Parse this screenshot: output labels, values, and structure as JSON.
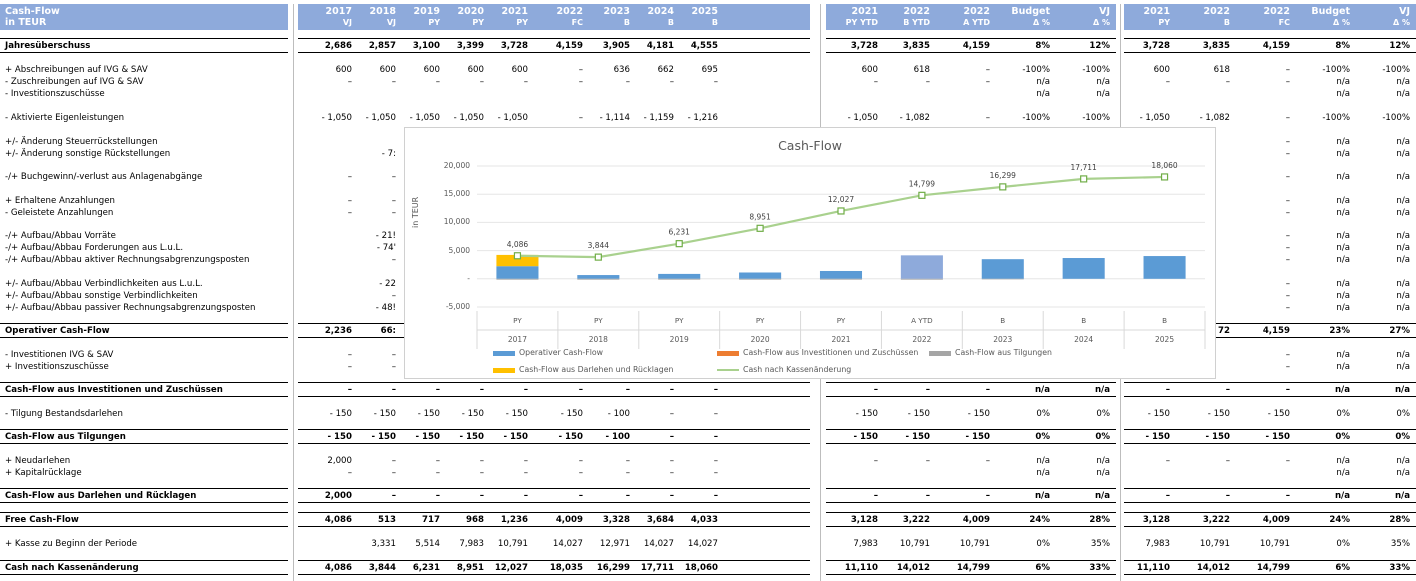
{
  "header": {
    "title": "Cash-Flow",
    "unit": "in TEUR",
    "columns": [
      {
        "year": "2017",
        "sub": "VJ"
      },
      {
        "year": "2018",
        "sub": "VJ"
      },
      {
        "year": "2019",
        "sub": "PY"
      },
      {
        "year": "2020",
        "sub": "PY"
      },
      {
        "year": "2021",
        "sub": "PY"
      },
      {
        "year": "2022",
        "sub": "FC"
      },
      {
        "year": "2023",
        "sub": "B"
      },
      {
        "year": "2024",
        "sub": "B"
      },
      {
        "year": "2025",
        "sub": "B"
      },
      {
        "year": "2021",
        "sub": "PY YTD"
      },
      {
        "year": "2022",
        "sub": "B YTD"
      },
      {
        "year": "2022",
        "sub": "A YTD"
      },
      {
        "year": "Budget",
        "sub": "Δ %"
      },
      {
        "year": "VJ",
        "sub": "Δ %"
      },
      {
        "year": "2021",
        "sub": "PY"
      },
      {
        "year": "2022",
        "sub": "B"
      },
      {
        "year": "2022",
        "sub": "FC"
      },
      {
        "year": "Budget",
        "sub": "Δ %"
      },
      {
        "year": "VJ",
        "sub": "Δ %"
      }
    ]
  },
  "rows": [
    {
      "label": "Jahresüberschuss",
      "bold": true,
      "v": [
        "2,686",
        "2,857",
        "3,100",
        "3,399",
        "3,728",
        "4,159",
        "3,905",
        "4,181",
        "4,555",
        "3,728",
        "3,835",
        "4,159",
        "8%",
        "12%",
        "3,728",
        "3,835",
        "4,159",
        "8%",
        "12%"
      ]
    },
    {
      "label": "+ Abschreibungen auf IVG & SAV",
      "v": [
        "600",
        "600",
        "600",
        "600",
        "600",
        "–",
        "636",
        "662",
        "695",
        "600",
        "618",
        "–",
        "-100%",
        "-100%",
        "600",
        "618",
        "–",
        "-100%",
        "-100%"
      ]
    },
    {
      "label": "- Zuschreibungen auf IVG & SAV",
      "v": [
        "–",
        "–",
        "–",
        "–",
        "–",
        "–",
        "–",
        "–",
        "–",
        "–",
        "–",
        "–",
        "n/a",
        "n/a",
        "–",
        "–",
        "–",
        "n/a",
        "n/a"
      ]
    },
    {
      "label": "- Investitionszuschüsse",
      "v": [
        "",
        "",
        "",
        "",
        "",
        "",
        "",
        "",
        "",
        "",
        "",
        "",
        "n/a",
        "n/a",
        "",
        "",
        "",
        "n/a",
        "n/a"
      ]
    },
    {
      "label": "- Aktivierte Eigenleistungen",
      "v": [
        "- 1,050",
        "- 1,050",
        "- 1,050",
        "- 1,050",
        "- 1,050",
        "–",
        "- 1,114",
        "- 1,159",
        "- 1,216",
        "- 1,050",
        "- 1,082",
        "–",
        "-100%",
        "-100%",
        "- 1,050",
        "- 1,082",
        "–",
        "-100%",
        "-100%"
      ]
    },
    {
      "label": "+/- Änderung Steuerrückstellungen",
      "v": [
        "",
        "",
        "",
        "",
        "",
        "",
        "",
        "",
        "",
        "",
        "",
        "",
        "",
        "",
        "",
        "",
        "–",
        "n/a",
        "n/a"
      ]
    },
    {
      "label": "+/- Änderung sonstige Rückstellungen",
      "v": [
        "",
        "- 7:",
        "",
        "",
        "",
        "",
        "",
        "",
        "",
        "",
        "",
        "",
        "",
        "",
        "",
        "",
        "–",
        "n/a",
        "n/a"
      ]
    },
    {
      "label": "-/+ Buchgewinn/-verlust aus Anlagenabgänge",
      "v": [
        "–",
        "–",
        "",
        "",
        "",
        "",
        "",
        "",
        "",
        "",
        "",
        "",
        "",
        "",
        "",
        "",
        "–",
        "n/a",
        "n/a"
      ]
    },
    {
      "label": "+ Erhaltene Anzahlungen",
      "v": [
        "–",
        "–",
        "",
        "",
        "",
        "",
        "",
        "",
        "",
        "",
        "",
        "",
        "",
        "",
        "",
        "",
        "–",
        "n/a",
        "n/a"
      ]
    },
    {
      "label": "- Geleistete Anzahlungen",
      "v": [
        "–",
        "–",
        "",
        "",
        "",
        "",
        "",
        "",
        "",
        "",
        "",
        "",
        "",
        "",
        "",
        "",
        "–",
        "n/a",
        "n/a"
      ]
    },
    {
      "label": "-/+ Aufbau/Abbau Vorräte",
      "v": [
        "",
        "- 21!",
        "",
        "",
        "",
        "",
        "",
        "",
        "",
        "",
        "",
        "",
        "",
        "",
        "",
        "",
        "–",
        "n/a",
        "n/a"
      ]
    },
    {
      "label": "-/+ Aufbau/Abbau Forderungen aus L.u.L.",
      "v": [
        "",
        "- 74'",
        "",
        "",
        "",
        "",
        "",
        "",
        "",
        "",
        "",
        "",
        "",
        "",
        "",
        "",
        "–",
        "n/a",
        "n/a"
      ]
    },
    {
      "label": "-/+ Aufbau/Abbau aktiver Rechnungsabgrenzungsposten",
      "v": [
        "",
        "–",
        "",
        "",
        "",
        "",
        "",
        "",
        "",
        "",
        "",
        "",
        "",
        "",
        "",
        "",
        "–",
        "n/a",
        "n/a"
      ]
    },
    {
      "label": "+/- Aufbau/Abbau Verbindlichkeiten aus L.u.L.",
      "v": [
        "",
        "- 22",
        "",
        "",
        "",
        "",
        "",
        "",
        "",
        "",
        "",
        "",
        "",
        "",
        "",
        "",
        "–",
        "n/a",
        "n/a"
      ]
    },
    {
      "label": "+/- Aufbau/Abbau sonstige Verbindlichkeiten",
      "v": [
        "",
        "–",
        "",
        "",
        "",
        "",
        "",
        "",
        "",
        "",
        "",
        "",
        "",
        "",
        "",
        "",
        "–",
        "n/a",
        "n/a"
      ]
    },
    {
      "label": "+/- Aufbau/Abbau passiver Rechnungsabgrenzungsposten",
      "v": [
        "",
        "- 48!",
        "",
        "",
        "",
        "",
        "",
        "",
        "",
        "",
        "",
        "",
        "",
        "",
        "",
        "",
        "–",
        "n/a",
        "n/a"
      ]
    },
    {
      "label": "Operativer Cash-Flow",
      "bold": true,
      "v": [
        "2,236",
        "66:",
        "",
        "",
        "",
        "",
        "",
        "",
        "",
        "",
        "",
        "",
        "",
        "",
        "",
        "72",
        "4,159",
        "23%",
        "27%"
      ]
    },
    {
      "label": "- Investitionen IVG & SAV",
      "v": [
        "–",
        "–",
        "",
        "",
        "",
        "",
        "",
        "",
        "",
        "",
        "",
        "",
        "",
        "",
        "",
        "",
        "–",
        "n/a",
        "n/a"
      ]
    },
    {
      "label": "+ Investitionszuschüsse",
      "v": [
        "–",
        "–",
        "",
        "",
        "",
        "",
        "",
        "",
        "",
        "",
        "",
        "",
        "",
        "",
        "",
        "",
        "–",
        "n/a",
        "n/a"
      ]
    },
    {
      "label": "Cash-Flow aus Investitionen und Zuschüssen",
      "bold": true,
      "v": [
        "–",
        "–",
        "–",
        "–",
        "–",
        "–",
        "–",
        "–",
        "–",
        "–",
        "–",
        "–",
        "n/a",
        "n/a",
        "–",
        "–",
        "–",
        "n/a",
        "n/a"
      ]
    },
    {
      "label": "- Tilgung Bestandsdarlehen",
      "v": [
        "- 150",
        "- 150",
        "- 150",
        "- 150",
        "- 150",
        "- 150",
        "- 100",
        "–",
        "–",
        "- 150",
        "- 150",
        "- 150",
        "0%",
        "0%",
        "- 150",
        "- 150",
        "- 150",
        "0%",
        "0%"
      ]
    },
    {
      "label": "Cash-Flow aus Tilgungen",
      "bold": true,
      "v": [
        "- 150",
        "- 150",
        "- 150",
        "- 150",
        "- 150",
        "- 150",
        "- 100",
        "–",
        "–",
        "- 150",
        "- 150",
        "- 150",
        "0%",
        "0%",
        "- 150",
        "- 150",
        "- 150",
        "0%",
        "0%"
      ]
    },
    {
      "label": "+ Neudarlehen",
      "v": [
        "2,000",
        "–",
        "–",
        "–",
        "–",
        "–",
        "–",
        "–",
        "–",
        "–",
        "–",
        "–",
        "n/a",
        "n/a",
        "–",
        "–",
        "–",
        "n/a",
        "n/a"
      ]
    },
    {
      "label": "+ Kapitalrücklage",
      "v": [
        "–",
        "–",
        "–",
        "–",
        "–",
        "–",
        "–",
        "–",
        "–",
        "",
        "",
        "",
        "n/a",
        "n/a",
        "",
        "",
        "",
        "n/a",
        "n/a"
      ]
    },
    {
      "label": "Cash-Flow aus Darlehen und Rücklagen",
      "bold": true,
      "v": [
        "2,000",
        "–",
        "–",
        "–",
        "–",
        "–",
        "–",
        "–",
        "–",
        "–",
        "–",
        "–",
        "n/a",
        "n/a",
        "–",
        "–",
        "–",
        "n/a",
        "n/a"
      ]
    },
    {
      "label": "Free Cash-Flow",
      "bold": true,
      "v": [
        "4,086",
        "513",
        "717",
        "968",
        "1,236",
        "4,009",
        "3,328",
        "3,684",
        "4,033",
        "3,128",
        "3,222",
        "4,009",
        "24%",
        "28%",
        "3,128",
        "3,222",
        "4,009",
        "24%",
        "28%"
      ]
    },
    {
      "label": "+ Kasse zu Beginn der Periode",
      "v": [
        "",
        "3,331",
        "5,514",
        "7,983",
        "10,791",
        "14,027",
        "12,971",
        "14,027",
        "14,027",
        "7,983",
        "10,791",
        "10,791",
        "0%",
        "35%",
        "7,983",
        "10,791",
        "10,791",
        "0%",
        "35%"
      ]
    },
    {
      "label": "Cash nach Kassenänderung",
      "bold": true,
      "v": [
        "4,086",
        "3,844",
        "6,231",
        "8,951",
        "12,027",
        "18,035",
        "16,299",
        "17,711",
        "18,060",
        "11,110",
        "14,012",
        "14,799",
        "6%",
        "33%",
        "11,110",
        "14,012",
        "14,799",
        "6%",
        "33%"
      ]
    }
  ],
  "chart_data": {
    "type": "bar",
    "title": "Cash-Flow",
    "ylabel": "in TEUR",
    "ylim": [
      -5000,
      20000
    ],
    "yticks": [
      "20,000",
      "15,000",
      "10,000",
      "5,000",
      "-",
      "-5,000"
    ],
    "categories": [
      {
        "period": "PY",
        "year": "2017"
      },
      {
        "period": "PY",
        "year": "2018"
      },
      {
        "period": "PY",
        "year": "2019"
      },
      {
        "period": "PY",
        "year": "2020"
      },
      {
        "period": "PY",
        "year": "2021"
      },
      {
        "period": "A YTD",
        "year": "2022"
      },
      {
        "period": "B",
        "year": "2023"
      },
      {
        "period": "B",
        "year": "2024"
      },
      {
        "period": "B",
        "year": "2025"
      }
    ],
    "series": [
      {
        "name": "Operativer Cash-Flow",
        "color": "#5b9bd5",
        "values": [
          2236,
          663,
          867,
          1118,
          1386,
          4159,
          3478,
          3684,
          4033
        ]
      },
      {
        "name": "Cash-Flow aus Investitionen und Zuschüssen",
        "color": "#ed7d31",
        "values": [
          0,
          0,
          0,
          0,
          0,
          0,
          0,
          0,
          0
        ]
      },
      {
        "name": "Cash-Flow aus Tilgungen",
        "color": "#a5a5a5",
        "values": [
          -150,
          -150,
          -150,
          -150,
          -150,
          -150,
          -100,
          0,
          0
        ]
      },
      {
        "name": "Cash-Flow aus Darlehen und Rücklagen",
        "color": "#ffc000",
        "values": [
          2000,
          0,
          0,
          0,
          0,
          0,
          0,
          0,
          0
        ]
      }
    ],
    "line": {
      "name": "Cash nach Kassenänderung",
      "color": "#a9d18e",
      "values": [
        4086,
        3844,
        6231,
        8951,
        12027,
        14799,
        16299,
        17711,
        18060
      ],
      "labels": [
        "4,086",
        "3,844",
        "6,231",
        "8,951",
        "12,027",
        "14,799",
        "16,299",
        "17,711",
        "18,060"
      ]
    },
    "legend_position": "bottom"
  }
}
